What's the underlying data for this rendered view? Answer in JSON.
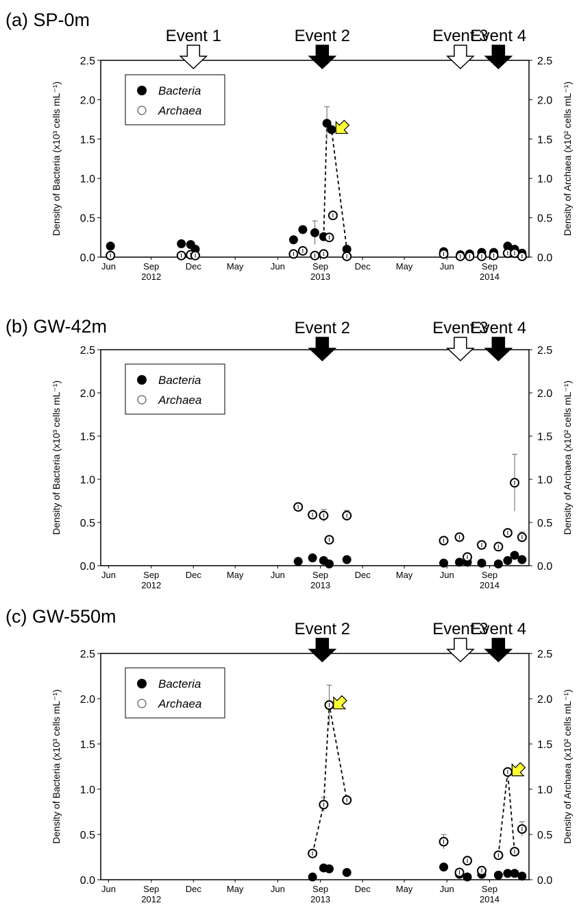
{
  "chart_data": [
    {
      "type": "scatter",
      "title": "(a) SP-0m",
      "ylabel_left": "Density of Bacteria (x10³ cells mL⁻¹)",
      "ylabel_right": "Density of Archaea (x10² cells mL⁻¹)",
      "ylim": [
        0,
        2.5
      ],
      "y_ticks": [
        "0.0",
        "0.5",
        "1.0",
        "1.5",
        "2.0",
        "2.5"
      ],
      "x_ticks": [
        "Jun",
        "Sep",
        "Dec",
        "May",
        "Jun",
        "Sep",
        "Dec",
        "May",
        "Jun",
        "Sep"
      ],
      "year_labels": [
        "2012",
        "2013",
        "2014"
      ],
      "legend": {
        "placement": "top-left",
        "entries": [
          "Bacteria",
          "Archaea"
        ]
      },
      "events": [
        {
          "label": "Event 1",
          "fill": "white"
        },
        {
          "label": "Event 2",
          "fill": "black"
        },
        {
          "label": "Event 3",
          "fill": "white"
        },
        {
          "label": "Event 4",
          "fill": "black"
        }
      ],
      "series": [
        {
          "name": "Bacteria",
          "marker": "filled",
          "points": [
            {
              "x": "2012-06-05",
              "y": 0.14
            },
            {
              "x": "2012-11-05",
              "y": 0.17
            },
            {
              "x": "2012-11-25",
              "y": 0.16
            },
            {
              "x": "2012-12-05",
              "y": 0.1
            },
            {
              "x": "2013-07-05",
              "y": 0.22
            },
            {
              "x": "2013-07-25",
              "y": 0.35
            },
            {
              "x": "2013-08-20",
              "y": 0.31,
              "err": 0.15
            },
            {
              "x": "2013-09-08",
              "y": 0.26
            },
            {
              "x": "2013-09-15",
              "y": 1.7,
              "err": 0.21
            },
            {
              "x": "2013-09-25",
              "y": 1.62
            },
            {
              "x": "2013-10-28",
              "y": 0.1
            },
            {
              "x": "2014-05-25",
              "y": 0.07
            },
            {
              "x": "2014-06-30",
              "y": 0.03
            },
            {
              "x": "2014-07-20",
              "y": 0.04
            },
            {
              "x": "2014-08-15",
              "y": 0.06
            },
            {
              "x": "2014-09-10",
              "y": 0.06
            },
            {
              "x": "2014-10-10",
              "y": 0.14
            },
            {
              "x": "2014-10-25",
              "y": 0.1
            },
            {
              "x": "2014-11-10",
              "y": 0.05
            }
          ]
        },
        {
          "name": "Archaea",
          "marker": "open",
          "points": [
            {
              "x": "2012-06-05",
              "y": 0.02
            },
            {
              "x": "2012-11-05",
              "y": 0.02
            },
            {
              "x": "2012-11-25",
              "y": 0.03
            },
            {
              "x": "2012-12-05",
              "y": 0.02
            },
            {
              "x": "2013-07-05",
              "y": 0.04
            },
            {
              "x": "2013-07-25",
              "y": 0.08
            },
            {
              "x": "2013-08-20",
              "y": 0.02
            },
            {
              "x": "2013-09-08",
              "y": 0.04
            },
            {
              "x": "2013-09-20",
              "y": 0.25
            },
            {
              "x": "2013-09-28",
              "y": 0.53
            },
            {
              "x": "2013-10-28",
              "y": 0.01
            },
            {
              "x": "2014-05-25",
              "y": 0.04
            },
            {
              "x": "2014-06-30",
              "y": 0.01
            },
            {
              "x": "2014-07-20",
              "y": 0.01
            },
            {
              "x": "2014-08-15",
              "y": 0.01
            },
            {
              "x": "2014-09-10",
              "y": 0.02
            },
            {
              "x": "2014-10-10",
              "y": 0.05
            },
            {
              "x": "2014-10-25",
              "y": 0.05
            },
            {
              "x": "2014-11-10",
              "y": 0.01
            }
          ]
        }
      ],
      "dashed_line": {
        "x": [
          "2013-09-08",
          "2013-09-15",
          "2013-09-25",
          "2013-10-28"
        ],
        "y": [
          0.26,
          1.7,
          1.62,
          0.1
        ]
      },
      "highlight_arrows": [
        {
          "x": "2013-09-25",
          "y": 1.62
        }
      ]
    },
    {
      "type": "scatter",
      "title": "(b) GW-42m",
      "ylabel_left": "Density of Bacteria (x10³ cells mL⁻¹)",
      "ylabel_right": "Density of Archaea (x10² cells mL⁻¹)",
      "ylim": [
        0,
        2.5
      ],
      "y_ticks": [
        "0.0",
        "0.5",
        "1.0",
        "1.5",
        "2.0",
        "2.5"
      ],
      "x_ticks": [
        "Jun",
        "Sep",
        "Dec",
        "May",
        "Jun",
        "Sep",
        "Dec",
        "May",
        "Jun",
        "Sep"
      ],
      "year_labels": [
        "2012",
        "2013",
        "2014"
      ],
      "legend": {
        "placement": "top-left",
        "entries": [
          "Bacteria",
          "Archaea"
        ]
      },
      "events": [
        {
          "label": "Event 2",
          "fill": "black"
        },
        {
          "label": "Event 3",
          "fill": "white"
        },
        {
          "label": "Event 4",
          "fill": "black"
        }
      ],
      "series": [
        {
          "name": "Bacteria",
          "marker": "filled",
          "points": [
            {
              "x": "2013-07-15",
              "y": 0.05
            },
            {
              "x": "2013-08-15",
              "y": 0.09
            },
            {
              "x": "2013-09-08",
              "y": 0.06
            },
            {
              "x": "2013-09-20",
              "y": 0.02
            },
            {
              "x": "2013-10-28",
              "y": 0.07
            },
            {
              "x": "2014-05-25",
              "y": 0.03
            },
            {
              "x": "2014-06-28",
              "y": 0.04
            },
            {
              "x": "2014-07-15",
              "y": 0.04
            },
            {
              "x": "2014-08-15",
              "y": 0.03
            },
            {
              "x": "2014-09-20",
              "y": 0.02
            },
            {
              "x": "2014-10-10",
              "y": 0.06
            },
            {
              "x": "2014-10-25",
              "y": 0.12
            },
            {
              "x": "2014-11-10",
              "y": 0.07
            }
          ]
        },
        {
          "name": "Archaea",
          "marker": "open",
          "points": [
            {
              "x": "2013-07-15",
              "y": 0.68
            },
            {
              "x": "2013-08-15",
              "y": 0.59
            },
            {
              "x": "2013-09-08",
              "y": 0.58,
              "err": 0.07
            },
            {
              "x": "2013-09-20",
              "y": 0.3
            },
            {
              "x": "2013-10-28",
              "y": 0.58,
              "err": 0.06
            },
            {
              "x": "2014-05-25",
              "y": 0.29
            },
            {
              "x": "2014-06-28",
              "y": 0.33
            },
            {
              "x": "2014-07-15",
              "y": 0.1
            },
            {
              "x": "2014-08-15",
              "y": 0.24
            },
            {
              "x": "2014-09-20",
              "y": 0.22
            },
            {
              "x": "2014-10-10",
              "y": 0.38
            },
            {
              "x": "2014-10-25",
              "y": 0.96,
              "err": 0.33
            },
            {
              "x": "2014-11-10",
              "y": 0.33,
              "err": 0.06
            }
          ]
        }
      ]
    },
    {
      "type": "scatter",
      "title": "(c) GW-550m",
      "ylabel_left": "Density of Bacteria (x10³ cells mL⁻¹)",
      "ylabel_right": "Density of Archaea (x10² cells mL⁻¹)",
      "ylim": [
        0,
        2.5
      ],
      "y_ticks": [
        "0.0",
        "0.5",
        "1.0",
        "1.5",
        "2.0",
        "2.5"
      ],
      "x_ticks": [
        "Jun",
        "Sep",
        "Dec",
        "May",
        "Jun",
        "Sep",
        "Dec",
        "May",
        "Jun",
        "Sep"
      ],
      "year_labels": [
        "2012",
        "2013",
        "2014"
      ],
      "legend": {
        "placement": "top-left",
        "entries": [
          "Bacteria",
          "Archaea"
        ]
      },
      "events": [
        {
          "label": "Event 2",
          "fill": "black"
        },
        {
          "label": "Event 3",
          "fill": "white"
        },
        {
          "label": "Event 4",
          "fill": "black"
        }
      ],
      "series": [
        {
          "name": "Bacteria",
          "marker": "filled",
          "points": [
            {
              "x": "2013-08-15",
              "y": 0.03
            },
            {
              "x": "2013-09-08",
              "y": 0.13
            },
            {
              "x": "2013-09-20",
              "y": 0.12
            },
            {
              "x": "2013-10-28",
              "y": 0.08
            },
            {
              "x": "2014-05-25",
              "y": 0.14
            },
            {
              "x": "2014-06-28",
              "y": 0.06
            },
            {
              "x": "2014-07-15",
              "y": 0.03
            },
            {
              "x": "2014-08-15",
              "y": 0.06
            },
            {
              "x": "2014-09-20",
              "y": 0.05
            },
            {
              "x": "2014-10-10",
              "y": 0.07
            },
            {
              "x": "2014-10-25",
              "y": 0.07
            },
            {
              "x": "2014-11-10",
              "y": 0.04
            }
          ]
        },
        {
          "name": "Archaea",
          "marker": "open",
          "points": [
            {
              "x": "2013-08-15",
              "y": 0.29
            },
            {
              "x": "2013-09-08",
              "y": 0.83,
              "err": 0.08
            },
            {
              "x": "2013-09-20",
              "y": 1.93,
              "err": 0.22
            },
            {
              "x": "2013-10-28",
              "y": 0.88
            },
            {
              "x": "2014-05-25",
              "y": 0.42,
              "err": 0.08
            },
            {
              "x": "2014-06-28",
              "y": 0.08
            },
            {
              "x": "2014-07-15",
              "y": 0.21
            },
            {
              "x": "2014-08-15",
              "y": 0.1
            },
            {
              "x": "2014-09-20",
              "y": 0.27
            },
            {
              "x": "2014-10-10",
              "y": 1.19
            },
            {
              "x": "2014-10-25",
              "y": 0.31
            },
            {
              "x": "2014-11-10",
              "y": 0.56,
              "err": 0.08
            }
          ]
        }
      ],
      "dashed_lines": [
        {
          "x": [
            "2013-08-15",
            "2013-09-08",
            "2013-09-20",
            "2013-10-28"
          ],
          "y": [
            0.29,
            0.83,
            1.93,
            0.88
          ]
        },
        {
          "x": [
            "2014-09-20",
            "2014-10-10",
            "2014-10-25"
          ],
          "y": [
            0.27,
            1.19,
            0.31
          ]
        }
      ],
      "highlight_arrows": [
        {
          "x": "2013-09-20",
          "y": 1.93
        },
        {
          "x": "2014-10-10",
          "y": 1.19
        }
      ]
    }
  ]
}
